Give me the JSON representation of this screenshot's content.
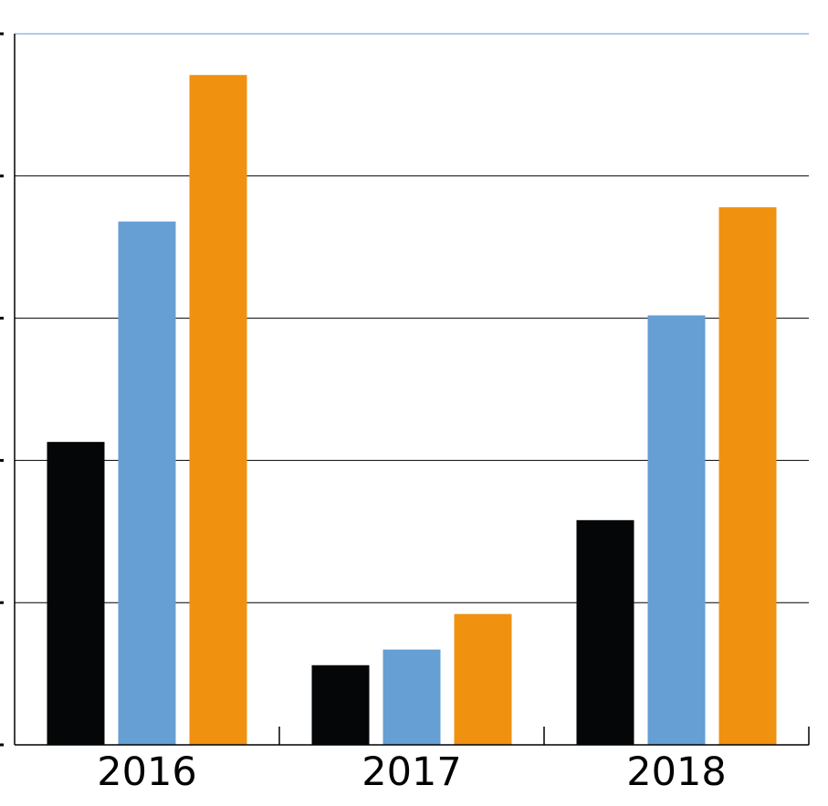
{
  "chart_data": {
    "type": "bar",
    "categories": [
      "2016",
      "2017",
      "2018"
    ],
    "series": [
      {
        "values": [
          2.13,
          0.56,
          1.58
        ]
      },
      {
        "values": [
          3.68,
          0.67,
          3.02
        ]
      },
      {
        "values": [
          4.71,
          0.92,
          3.78
        ]
      }
    ],
    "series_colors": [
      "#050608",
      "#659fd4",
      "#f09110"
    ],
    "ylim": [
      0,
      5
    ],
    "yticks": [
      0,
      1,
      2,
      3,
      4,
      5
    ],
    "grid": true,
    "legend": false
  }
}
